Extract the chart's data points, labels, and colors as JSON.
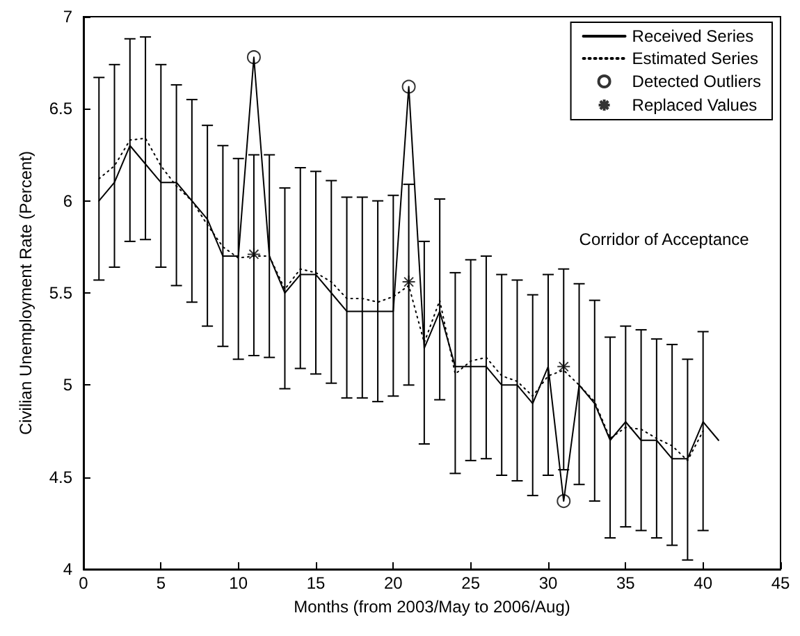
{
  "chart_data": {
    "type": "line",
    "xlabel": "Months (from 2003/May to 2006/Aug)",
    "ylabel": "Civilian Unemployment Rate (Percent)",
    "xlim": [
      0,
      45
    ],
    "xticks": [
      0,
      5,
      10,
      15,
      20,
      25,
      30,
      35,
      40,
      45
    ],
    "ylim": [
      4,
      7
    ],
    "yticks": [
      4,
      4.5,
      5,
      5.5,
      6,
      6.5,
      7
    ],
    "grid": false,
    "legend": "top right",
    "annotations": [
      "Corridor of Acceptance"
    ],
    "series": [
      {
        "name": "Received Series",
        "color": "#000000",
        "line_style": "solid",
        "marker": "none",
        "x": [
          1,
          2,
          3,
          4,
          5,
          6,
          7,
          8,
          9,
          10,
          11,
          12,
          13,
          14,
          15,
          16,
          17,
          18,
          19,
          20,
          21,
          22,
          23,
          24,
          25,
          26,
          27,
          28,
          29,
          30,
          31,
          32,
          33,
          34,
          35,
          36,
          37,
          38,
          39,
          40,
          41
        ],
        "values": [
          6.0,
          6.1,
          6.3,
          6.2,
          6.1,
          6.1,
          6.0,
          5.9,
          5.7,
          5.7,
          6.78,
          5.7,
          5.5,
          5.6,
          5.6,
          5.5,
          5.4,
          5.4,
          5.4,
          5.4,
          6.62,
          5.2,
          5.4,
          5.1,
          5.1,
          5.1,
          5.0,
          5.0,
          4.9,
          5.1,
          4.37,
          5.0,
          4.9,
          4.7,
          4.8,
          4.7,
          4.7,
          4.6,
          4.6,
          4.8,
          4.7
        ]
      },
      {
        "name": "Estimated Series",
        "color": "#000000",
        "line_style": "dotted",
        "marker": "none",
        "x": [
          1,
          2,
          3,
          4,
          5,
          6,
          7,
          8,
          9,
          10,
          11,
          12,
          13,
          14,
          15,
          16,
          17,
          18,
          19,
          20,
          21,
          22,
          23,
          24,
          25,
          26,
          27,
          28,
          29,
          30,
          31,
          32,
          33,
          34,
          35,
          36,
          37,
          38,
          39,
          40
        ],
        "values": [
          6.12,
          6.19,
          6.33,
          6.34,
          6.19,
          6.08,
          6.0,
          5.87,
          5.75,
          5.69,
          5.7,
          5.7,
          5.52,
          5.63,
          5.61,
          5.56,
          5.47,
          5.47,
          5.45,
          5.48,
          5.54,
          5.23,
          5.46,
          5.06,
          5.13,
          5.15,
          5.05,
          5.02,
          4.94,
          5.05,
          5.08,
          5.0,
          4.91,
          4.71,
          4.77,
          4.76,
          4.71,
          4.67,
          4.59,
          4.75
        ],
        "errors": [
          [
            5.57,
            6.67
          ],
          [
            5.64,
            6.74
          ],
          [
            5.78,
            6.88
          ],
          [
            5.79,
            6.89
          ],
          [
            5.64,
            6.74
          ],
          [
            5.54,
            6.63
          ],
          [
            5.45,
            6.55
          ],
          [
            5.32,
            6.41
          ],
          [
            5.21,
            6.3
          ],
          [
            5.14,
            6.23
          ],
          [
            5.16,
            6.25
          ],
          [
            5.15,
            6.25
          ],
          [
            4.98,
            6.07
          ],
          [
            5.09,
            6.18
          ],
          [
            5.06,
            6.16
          ],
          [
            5.01,
            6.11
          ],
          [
            4.93,
            6.02
          ],
          [
            4.93,
            6.02
          ],
          [
            4.91,
            6.0
          ],
          [
            4.94,
            6.03
          ],
          [
            5.0,
            6.09
          ],
          [
            4.68,
            5.78
          ],
          [
            4.92,
            6.01
          ],
          [
            4.52,
            5.61
          ],
          [
            4.59,
            5.68
          ],
          [
            4.6,
            5.7
          ],
          [
            4.51,
            5.6
          ],
          [
            4.48,
            5.57
          ],
          [
            4.4,
            5.49
          ],
          [
            4.51,
            5.6
          ],
          [
            4.54,
            5.63
          ],
          [
            4.46,
            5.55
          ],
          [
            4.37,
            5.46
          ],
          [
            4.17,
            5.26
          ],
          [
            4.23,
            5.32
          ],
          [
            4.21,
            5.3
          ],
          [
            4.17,
            5.25
          ],
          [
            4.13,
            5.22
          ],
          [
            4.05,
            5.14
          ],
          [
            4.21,
            5.29
          ]
        ]
      },
      {
        "name": "Detected Outliers",
        "type": "scatter",
        "color": "#000000",
        "marker": "circle",
        "x": [
          11,
          21,
          31
        ],
        "values": [
          6.78,
          6.62,
          4.37
        ]
      },
      {
        "name": "Replaced Values",
        "type": "scatter",
        "color": "#000000",
        "marker": "cross",
        "x": [
          11,
          21,
          31
        ],
        "values": [
          5.71,
          5.56,
          5.1
        ]
      }
    ]
  }
}
